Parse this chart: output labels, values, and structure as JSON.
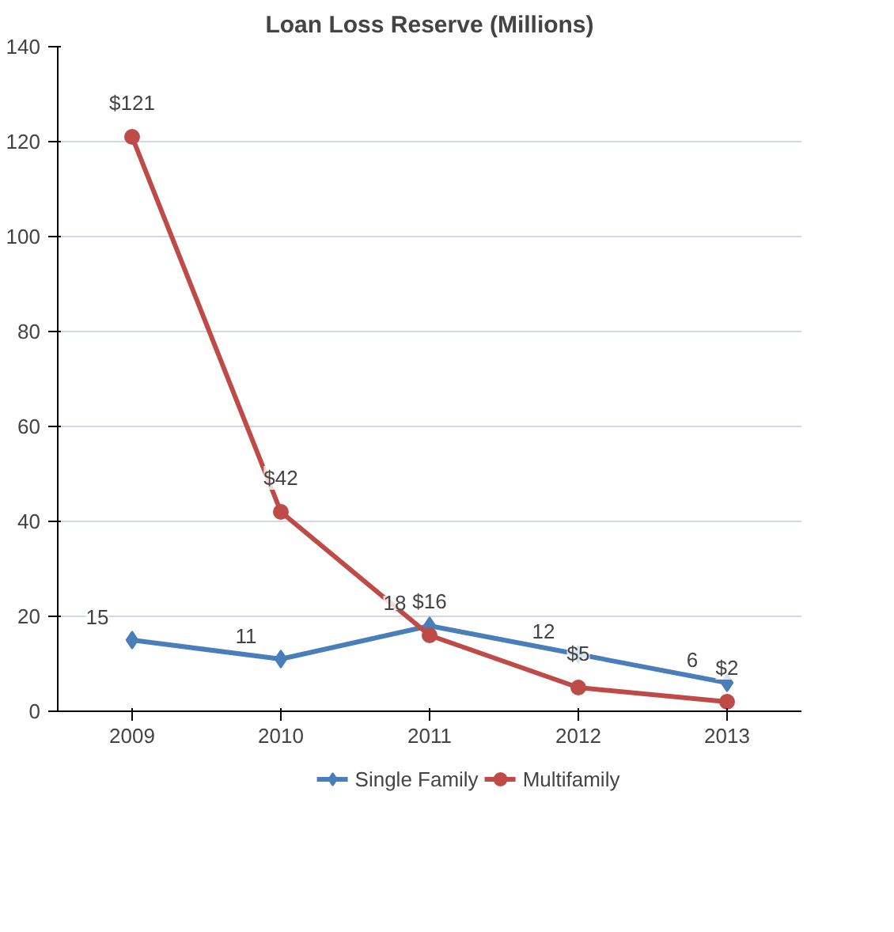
{
  "chart_data": {
    "type": "line",
    "title": "Loan Loss Reserve (Millions)",
    "categories": [
      "2009",
      "2010",
      "2011",
      "2012",
      "2013"
    ],
    "series": [
      {
        "name": "Single Family",
        "color": "#4a7ebb",
        "marker": "diamond",
        "values": [
          15,
          11,
          18,
          12,
          6
        ],
        "value_labels": [
          "15",
          "11",
          "18",
          "12",
          "6"
        ]
      },
      {
        "name": "Multifamily",
        "color": "#be4b48",
        "marker": "circle",
        "values": [
          121,
          42,
          16,
          5,
          2
        ],
        "value_labels": [
          "$121",
          "$42",
          "$16",
          "$5",
          "$2"
        ]
      }
    ],
    "ylim": [
      0,
      140
    ],
    "yticks": [
      0,
      20,
      40,
      60,
      80,
      100,
      120,
      140
    ],
    "grid": "y",
    "legend": "bottom",
    "line_style": "solid"
  }
}
